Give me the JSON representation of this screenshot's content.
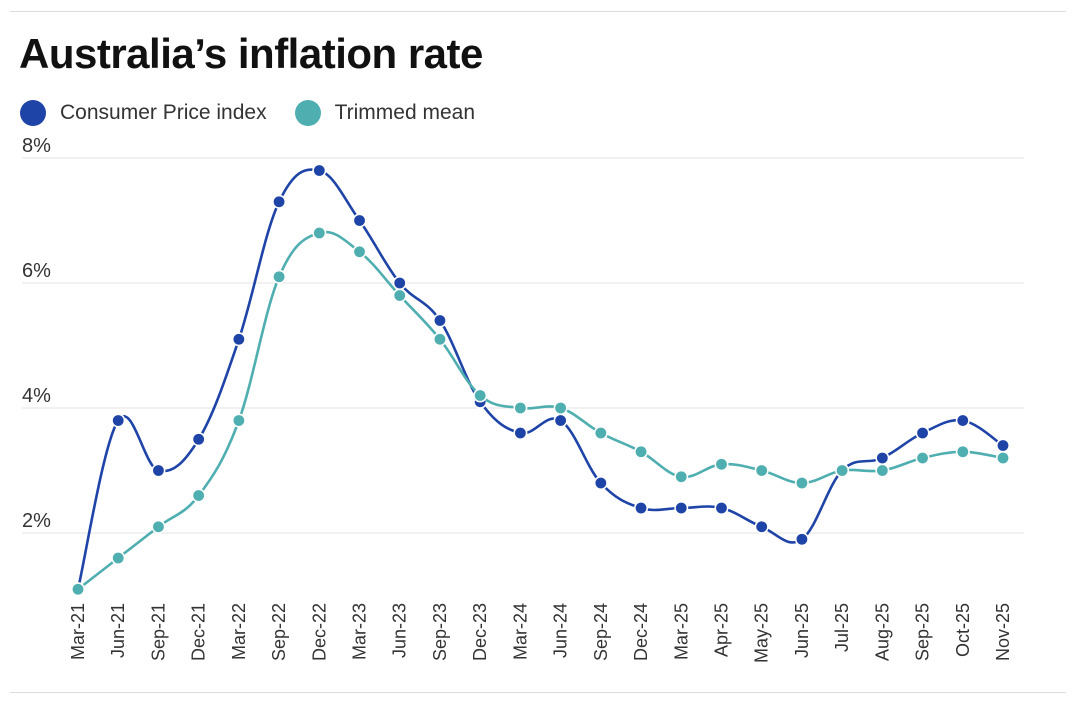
{
  "colors": {
    "cpi": "#1f44a8",
    "trimmed": "#4faeb0",
    "grid": "#e3e3e3"
  },
  "chart_data": {
    "type": "line",
    "title": "Australia’s inflation rate",
    "xlabel": "",
    "ylabel": "",
    "ylim": [
      0.8,
      8
    ],
    "yticks": [
      2,
      4,
      6,
      8
    ],
    "ytick_labels": [
      "2%",
      "4%",
      "6%",
      "8%"
    ],
    "grid": true,
    "legend_placement": "top-left",
    "categories": [
      "Mar-21",
      "Jun-21",
      "Sep-21",
      "Dec-21",
      "Mar-22",
      "Sep-22",
      "Dec-22",
      "Mar-23",
      "Jun-23",
      "Sep-23",
      "Dec-23",
      "Mar-24",
      "Jun-24",
      "Sep-24",
      "Dec-24",
      "Mar-25",
      "Apr-25",
      "May-25",
      "Jun-25",
      "Jul-25",
      "Aug-25",
      "Sep-25",
      "Oct-25",
      "Nov-25"
    ],
    "series": [
      {
        "name": "Consumer Price index",
        "values": [
          1.1,
          3.8,
          3.0,
          3.5,
          5.1,
          7.3,
          7.8,
          7.0,
          6.0,
          5.4,
          4.1,
          3.6,
          3.8,
          2.8,
          2.4,
          2.4,
          2.4,
          2.1,
          1.9,
          3.0,
          3.2,
          3.6,
          3.8,
          3.4
        ]
      },
      {
        "name": "Trimmed mean",
        "values": [
          1.1,
          1.6,
          2.1,
          2.6,
          3.8,
          6.1,
          6.8,
          6.5,
          5.8,
          5.1,
          4.2,
          4.0,
          4.0,
          3.6,
          3.3,
          2.9,
          3.1,
          3.0,
          2.8,
          3.0,
          3.0,
          3.2,
          3.3,
          3.2
        ]
      }
    ]
  }
}
